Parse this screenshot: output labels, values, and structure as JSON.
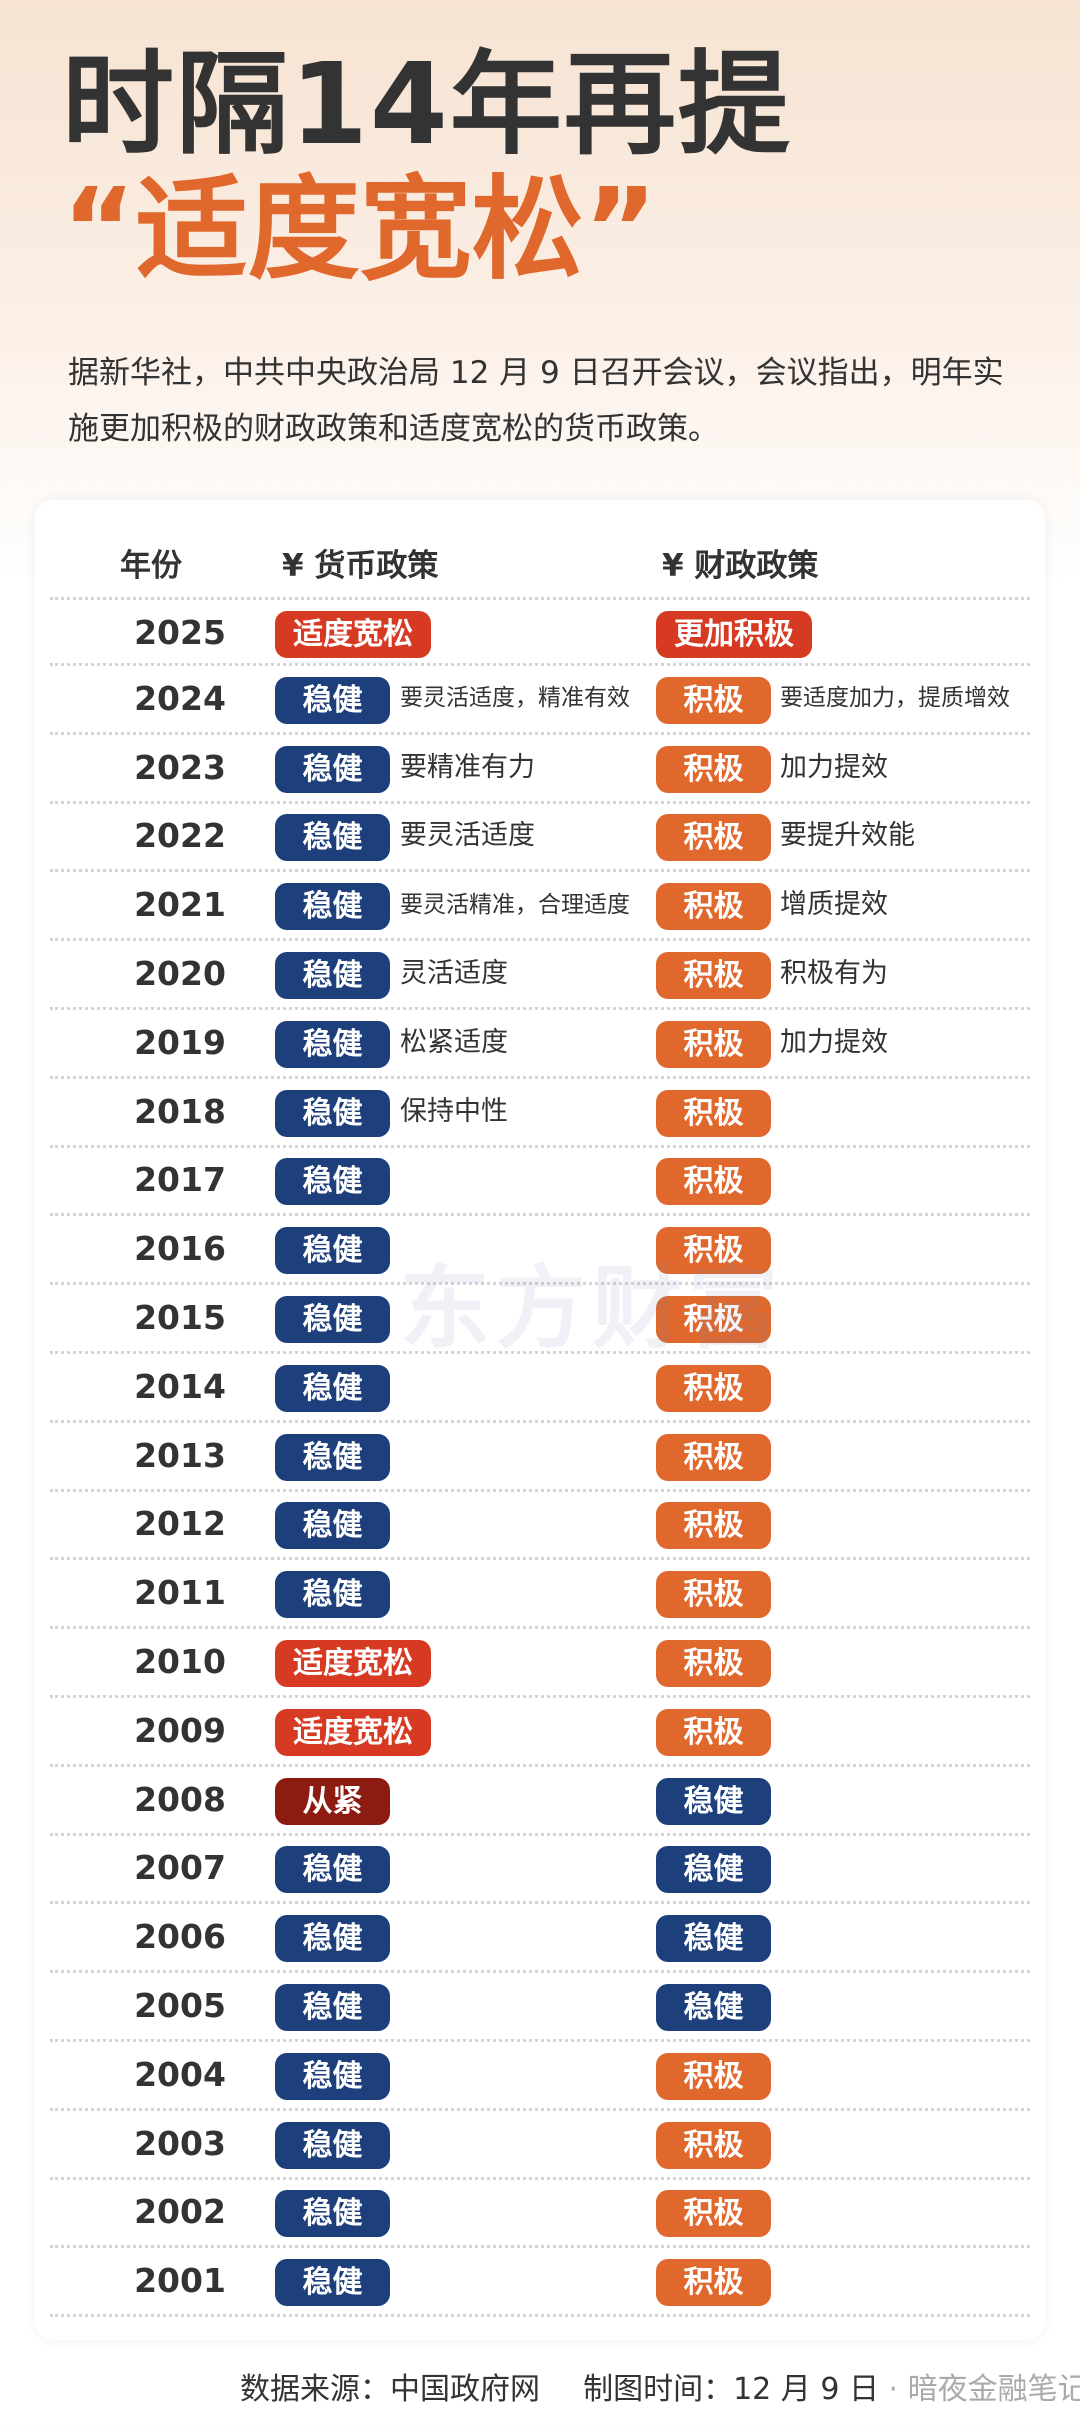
{
  "title": "时隔14年再提",
  "subtitle": "“适度宽松”",
  "intro": "据新华社，中共中央政治局 12 月 9 日召开会议，会议指出，明年实施更加积极的财政政策和适度宽松的货币政策。",
  "table": {
    "headers": {
      "year": "年份",
      "monetary": "¥ 货币政策",
      "fiscal": "¥ 财政政策"
    },
    "rows": [
      {
        "year": "2025",
        "monetary": "适度宽松",
        "m_color": "#d63a22",
        "m_desc": "",
        "fiscal": "更加积极",
        "f_color": "#d63a22",
        "f_desc": ""
      },
      {
        "year": "2024",
        "monetary": "稳健",
        "m_color": "#1d3f7c",
        "m_desc": "要灵活适度，精准有效",
        "fiscal": "积极",
        "f_color": "#e0682c",
        "f_desc": "要适度加力，提质增效"
      },
      {
        "year": "2023",
        "monetary": "稳健",
        "m_color": "#1d3f7c",
        "m_desc": "要精准有力",
        "fiscal": "积极",
        "f_color": "#e0682c",
        "f_desc": "加力提效"
      },
      {
        "year": "2022",
        "monetary": "稳健",
        "m_color": "#1d3f7c",
        "m_desc": "要灵活适度",
        "fiscal": "积极",
        "f_color": "#e0682c",
        "f_desc": "要提升效能"
      },
      {
        "year": "2021",
        "monetary": "稳健",
        "m_color": "#1d3f7c",
        "m_desc": "要灵活精准，合理适度",
        "fiscal": "积极",
        "f_color": "#e0682c",
        "f_desc": "增质提效"
      },
      {
        "year": "2020",
        "monetary": "稳健",
        "m_color": "#1d3f7c",
        "m_desc": "灵活适度",
        "fiscal": "积极",
        "f_color": "#e0682c",
        "f_desc": "积极有为"
      },
      {
        "year": "2019",
        "monetary": "稳健",
        "m_color": "#1d3f7c",
        "m_desc": "松紧适度",
        "fiscal": "积极",
        "f_color": "#e0682c",
        "f_desc": "加力提效"
      },
      {
        "year": "2018",
        "monetary": "稳健",
        "m_color": "#1d3f7c",
        "m_desc": "保持中性",
        "fiscal": "积极",
        "f_color": "#e0682c",
        "f_desc": ""
      },
      {
        "year": "2017",
        "monetary": "稳健",
        "m_color": "#1d3f7c",
        "m_desc": "",
        "fiscal": "积极",
        "f_color": "#e0682c",
        "f_desc": ""
      },
      {
        "year": "2016",
        "monetary": "稳健",
        "m_color": "#1d3f7c",
        "m_desc": "",
        "fiscal": "积极",
        "f_color": "#e0682c",
        "f_desc": ""
      },
      {
        "year": "2015",
        "monetary": "稳健",
        "m_color": "#1d3f7c",
        "m_desc": "",
        "fiscal": "积极",
        "f_color": "#e0682c",
        "f_desc": ""
      },
      {
        "year": "2014",
        "monetary": "稳健",
        "m_color": "#1d3f7c",
        "m_desc": "",
        "fiscal": "积极",
        "f_color": "#e0682c",
        "f_desc": ""
      },
      {
        "year": "2013",
        "monetary": "稳健",
        "m_color": "#1d3f7c",
        "m_desc": "",
        "fiscal": "积极",
        "f_color": "#e0682c",
        "f_desc": ""
      },
      {
        "year": "2012",
        "monetary": "稳健",
        "m_color": "#1d3f7c",
        "m_desc": "",
        "fiscal": "积极",
        "f_color": "#e0682c",
        "f_desc": ""
      },
      {
        "year": "2011",
        "monetary": "稳健",
        "m_color": "#1d3f7c",
        "m_desc": "",
        "fiscal": "积极",
        "f_color": "#e0682c",
        "f_desc": ""
      },
      {
        "year": "2010",
        "monetary": "适度宽松",
        "m_color": "#d63a22",
        "m_desc": "",
        "fiscal": "积极",
        "f_color": "#e0682c",
        "f_desc": ""
      },
      {
        "year": "2009",
        "monetary": "适度宽松",
        "m_color": "#d63a22",
        "m_desc": "",
        "fiscal": "积极",
        "f_color": "#e0682c",
        "f_desc": ""
      },
      {
        "year": "2008",
        "monetary": "从紧",
        "m_color": "#8c1c12",
        "m_desc": "",
        "fiscal": "稳健",
        "f_color": "#1d3f7c",
        "f_desc": ""
      },
      {
        "year": "2007",
        "monetary": "稳健",
        "m_color": "#1d3f7c",
        "m_desc": "",
        "fiscal": "稳健",
        "f_color": "#1d3f7c",
        "f_desc": ""
      },
      {
        "year": "2006",
        "monetary": "稳健",
        "m_color": "#1d3f7c",
        "m_desc": "",
        "fiscal": "稳健",
        "f_color": "#1d3f7c",
        "f_desc": ""
      },
      {
        "year": "2005",
        "monetary": "稳健",
        "m_color": "#1d3f7c",
        "m_desc": "",
        "fiscal": "稳健",
        "f_color": "#1d3f7c",
        "f_desc": ""
      },
      {
        "year": "2004",
        "monetary": "稳健",
        "m_color": "#1d3f7c",
        "m_desc": "",
        "fiscal": "积极",
        "f_color": "#e0682c",
        "f_desc": ""
      },
      {
        "year": "2003",
        "monetary": "稳健",
        "m_color": "#1d3f7c",
        "m_desc": "",
        "fiscal": "积极",
        "f_color": "#e0682c",
        "f_desc": ""
      },
      {
        "year": "2002",
        "monetary": "稳健",
        "m_color": "#1d3f7c",
        "m_desc": "",
        "fiscal": "积极",
        "f_color": "#e0682c",
        "f_desc": ""
      },
      {
        "year": "2001",
        "monetary": "稳健",
        "m_color": "#1d3f7c",
        "m_desc": "",
        "fiscal": "积极",
        "f_color": "#e0682c",
        "f_desc": ""
      }
    ]
  },
  "watermark": "东方财富",
  "footer": {
    "source": "数据来源：中国政府网",
    "date": "制图时间：12 月 9 日",
    "account": "· 暗夜金融笔记"
  }
}
